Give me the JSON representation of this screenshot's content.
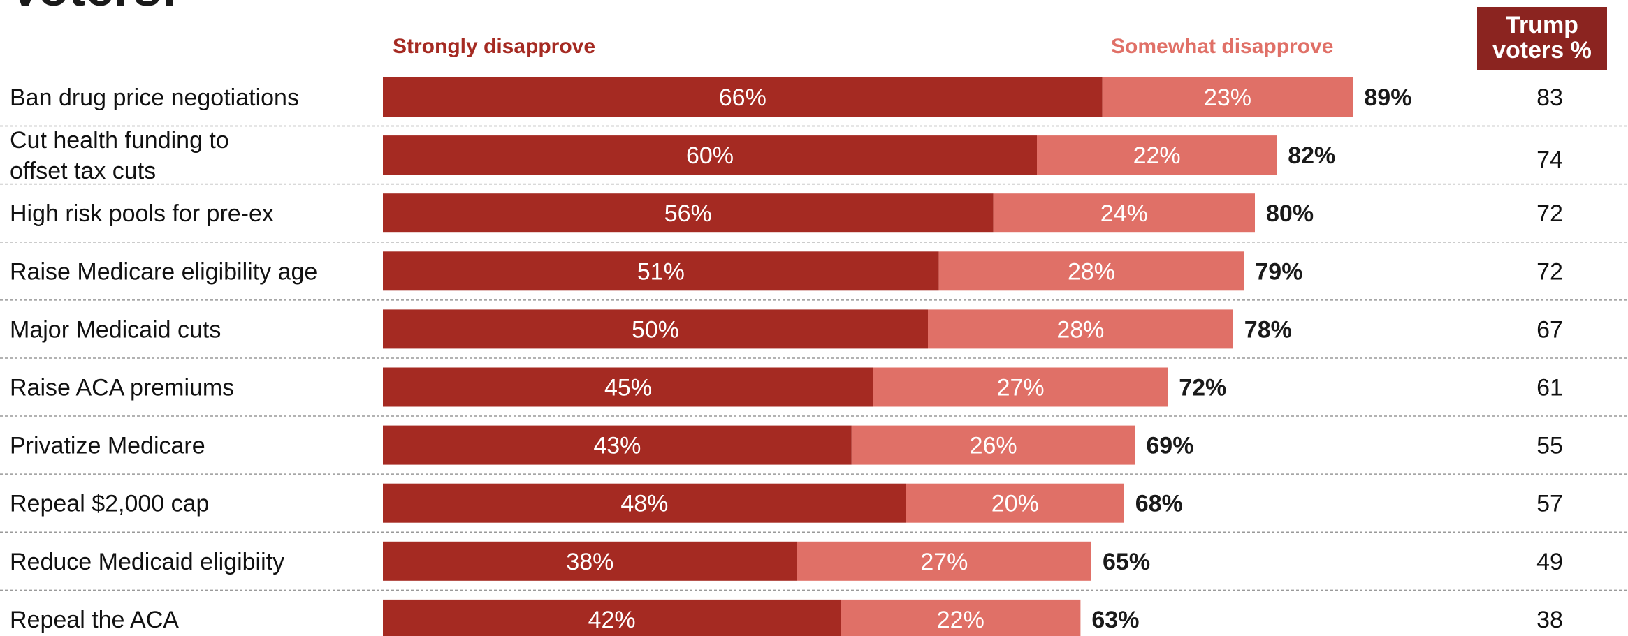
{
  "title_fragment": "Voters:",
  "legend": {
    "strongly": "Strongly disapprove",
    "somewhat": "Somewhat disapprove"
  },
  "trump_header": [
    "Trump",
    "voters %"
  ],
  "colors": {
    "strongly": "#a52a22",
    "somewhat": "#e07067",
    "header_bg": "#8b2420"
  },
  "chart_data": {
    "type": "bar",
    "orientation": "horizontal",
    "stacked": true,
    "categories": [
      [
        "Ban drug price negotiations"
      ],
      [
        "Cut health funding to",
        "offset tax cuts"
      ],
      [
        "High risk pools for pre-ex"
      ],
      [
        "Raise Medicare eligibility age"
      ],
      [
        "Major Medicaid cuts"
      ],
      [
        "Raise ACA premiums"
      ],
      [
        "Privatize Medicare"
      ],
      [
        "Repeal $2,000 cap"
      ],
      [
        "Reduce Medicaid eligibiity"
      ],
      [
        "Repeal the ACA"
      ]
    ],
    "series": [
      {
        "name": "Strongly disapprove",
        "values": [
          66,
          60,
          56,
          51,
          50,
          45,
          43,
          48,
          38,
          42
        ]
      },
      {
        "name": "Somewhat disapprove",
        "values": [
          23,
          22,
          24,
          28,
          28,
          27,
          26,
          20,
          27,
          22
        ]
      }
    ],
    "totals": [
      89,
      82,
      80,
      79,
      78,
      72,
      69,
      68,
      65,
      63
    ],
    "trump_voters": [
      83,
      74,
      72,
      72,
      67,
      61,
      55,
      57,
      49,
      38
    ],
    "value_suffix": "%",
    "xlim": [
      0,
      100
    ]
  }
}
